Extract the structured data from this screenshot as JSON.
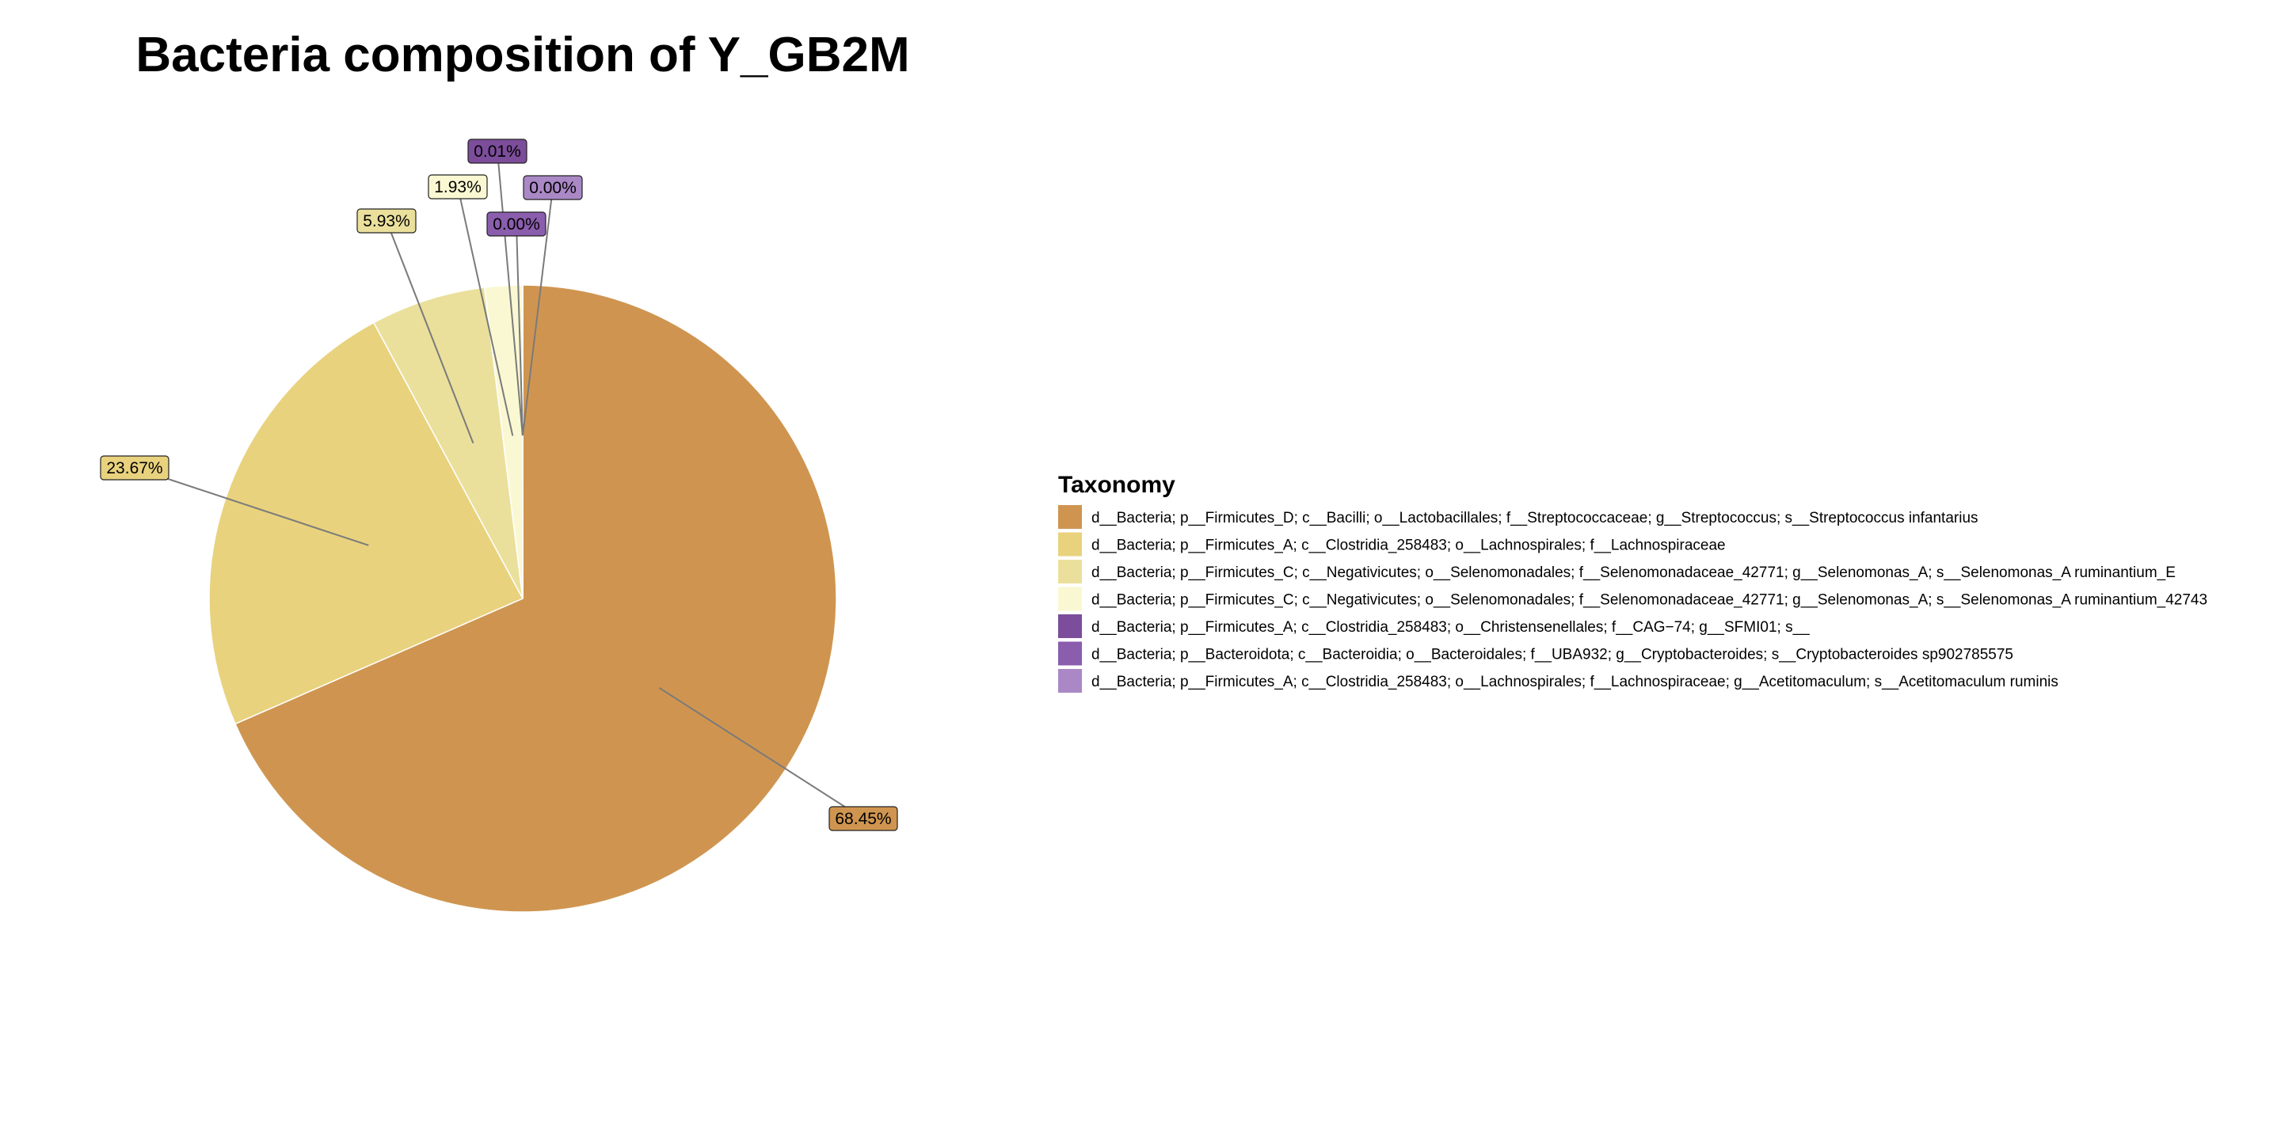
{
  "chart_data": {
    "type": "pie",
    "title": "Bacteria composition of Y_GB2M",
    "legend_title": "Taxonomy",
    "legend_position": "right",
    "slices": [
      {
        "name": "d__Bacteria; p__Firmicutes_D; c__Bacilli; o__Lactobacillales; f__Streptococcaceae; g__Streptococcus; s__Streptococcus infantarius",
        "value": 68.45,
        "label": "68.45%",
        "color": "#CF9550"
      },
      {
        "name": "d__Bacteria; p__Firmicutes_A; c__Clostridia_258483; o__Lachnospirales; f__Lachnospiraceae",
        "value": 23.67,
        "label": "23.67%",
        "color": "#E9D27E"
      },
      {
        "name": "d__Bacteria; p__Firmicutes_C; c__Negativicutes; o__Selenomonadales; f__Selenomonadaceae_42771; g__Selenomonas_A; s__Selenomonas_A ruminantium_E",
        "value": 5.93,
        "label": "5.93%",
        "color": "#EAE09C"
      },
      {
        "name": "d__Bacteria; p__Firmicutes_C; c__Negativicutes; o__Selenomonadales; f__Selenomonadaceae_42771; g__Selenomonas_A; s__Selenomonas_A ruminantium_42743",
        "value": 1.93,
        "label": "1.93%",
        "color": "#FAF8D2"
      },
      {
        "name": "d__Bacteria; p__Firmicutes_A; c__Clostridia_258483; o__Christensenellales; f__CAG−74; g__SFMI01; s__",
        "value": 0.01,
        "label": "0.01%",
        "color": "#7C4D9A"
      },
      {
        "name": "d__Bacteria; p__Bacteroidota; c__Bacteroidia; o__Bacteroidales; f__UBA932; g__Cryptobacteroides; s__Cryptobacteroides sp902785575",
        "value": 0.004,
        "label": "0.00%",
        "color": "#8A5DAD"
      },
      {
        "name": "d__Bacteria; p__Firmicutes_A; c__Clostridia_258483; o__Lachnospirales; f__Lachnospiraceae; g__Acetitomaculum; s__Acetitomaculum ruminis",
        "value": 0.003,
        "label": "0.00%",
        "color": "#AA88C6"
      }
    ]
  }
}
